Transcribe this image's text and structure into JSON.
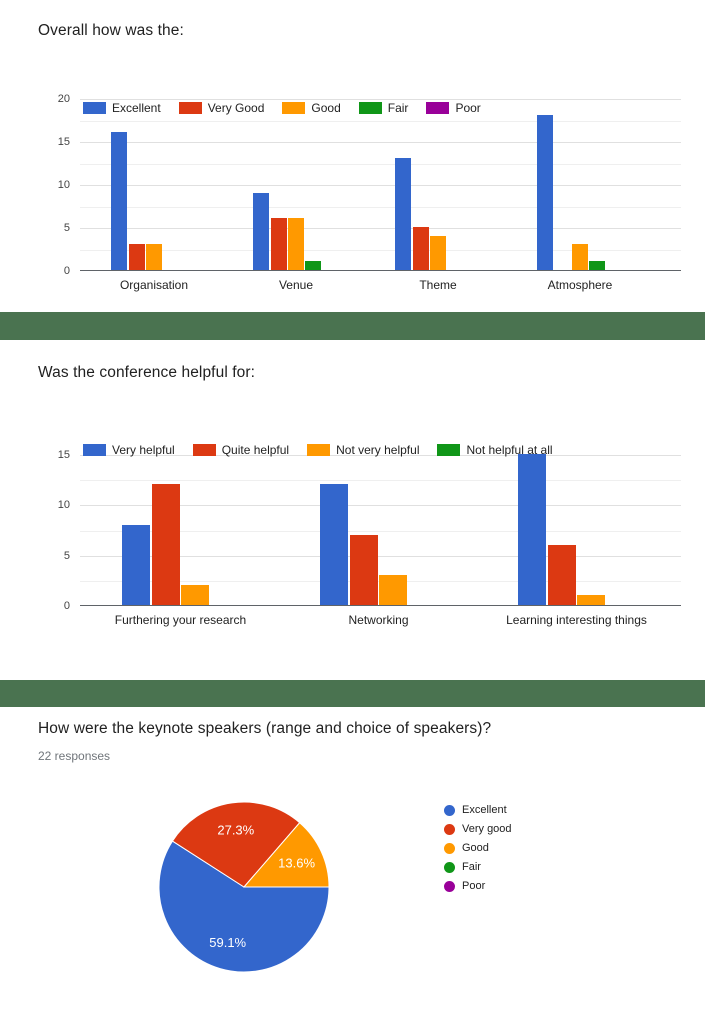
{
  "page": {
    "background": "#ffffff",
    "divider_color": "#4a7350"
  },
  "sections": [
    {
      "title": "Overall how was the:"
    },
    {
      "title": "Was the conference helpful for:"
    },
    {
      "title": "How were the keynote speakers (range and choice of speakers)?",
      "responses_label": "22 responses"
    }
  ],
  "chart_data": [
    {
      "type": "bar",
      "title": "Overall how was the:",
      "categories": [
        "Organisation",
        "Venue",
        "Theme",
        "Atmosphere"
      ],
      "series": [
        {
          "name": "Excellent",
          "color": "#3366cc",
          "values": [
            16,
            9,
            13,
            18
          ]
        },
        {
          "name": "Very Good",
          "color": "#dc3912",
          "values": [
            3,
            6,
            5,
            0
          ]
        },
        {
          "name": "Good",
          "color": "#ff9900",
          "values": [
            3,
            6,
            4,
            3
          ]
        },
        {
          "name": "Fair",
          "color": "#109618",
          "values": [
            0,
            1,
            0,
            1
          ]
        },
        {
          "name": "Poor",
          "color": "#990099",
          "values": [
            0,
            0,
            0,
            0
          ]
        }
      ],
      "xlabel": "",
      "ylabel": "",
      "ylim": [
        0,
        20
      ],
      "yticks": [
        0,
        5,
        10,
        15,
        20
      ],
      "grid_minor_step": 2.5,
      "grid": true,
      "legend_position": "top"
    },
    {
      "type": "bar",
      "title": "Was the conference helpful for:",
      "categories": [
        "Furthering your research",
        "Networking",
        "Learning interesting things"
      ],
      "series": [
        {
          "name": "Very helpful",
          "color": "#3366cc",
          "values": [
            8,
            12,
            15
          ]
        },
        {
          "name": "Quite helpful",
          "color": "#dc3912",
          "values": [
            12,
            7,
            6
          ]
        },
        {
          "name": "Not very helpful",
          "color": "#ff9900",
          "values": [
            2,
            3,
            1
          ]
        },
        {
          "name": "Not helpful at all",
          "color": "#109618",
          "values": [
            0,
            0,
            0
          ]
        }
      ],
      "xlabel": "",
      "ylabel": "",
      "ylim": [
        0,
        15
      ],
      "yticks": [
        0,
        5,
        10,
        15
      ],
      "grid_minor_step": 2.5,
      "grid": true,
      "legend_position": "top"
    },
    {
      "type": "pie",
      "title": "How were the keynote speakers (range and choice of speakers)?",
      "total_responses": 22,
      "labels": [
        "Excellent",
        "Very good",
        "Good",
        "Fair",
        "Poor"
      ],
      "values": [
        13,
        6,
        3,
        0,
        0
      ],
      "percent_labels": [
        "59.1%",
        "27.3%",
        "13.6%",
        "",
        ""
      ],
      "colors": [
        "#3366cc",
        "#dc3912",
        "#ff9900",
        "#109618",
        "#990099"
      ],
      "legend_position": "right",
      "start_angle_deg": 0,
      "direction": "clockwise"
    }
  ]
}
